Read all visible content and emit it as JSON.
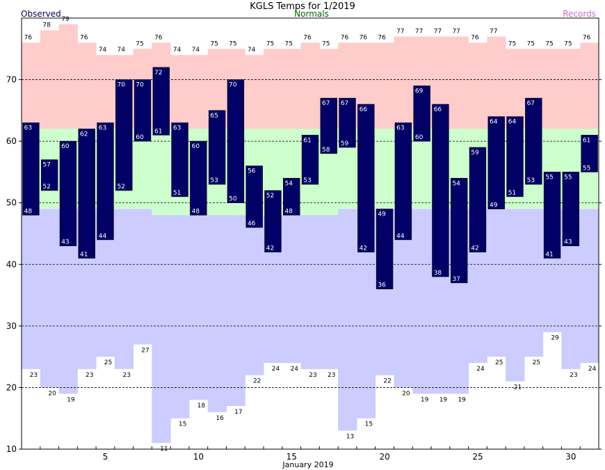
{
  "chart_data": {
    "type": "bar",
    "title": "KGLS Temps for 1/2019",
    "xlabel": "January 2019",
    "ylabel": "",
    "legend": [
      "Observed",
      "Normals",
      "Records"
    ],
    "xlim": [
      0.5,
      31.5
    ],
    "ylim": [
      10,
      80
    ],
    "grid": "dashed horizontal at 20, 30, 40, 50, 60, 70",
    "x_ticks": [
      5,
      10,
      15,
      20,
      25,
      30
    ],
    "y_ticks": [
      10,
      20,
      30,
      40,
      50,
      60,
      70
    ],
    "colors": {
      "observed": "#000066",
      "observed_text": "#ffffff",
      "normal_band": "#ccffcc",
      "record_high_band": "#ffcccc",
      "record_low_band": "#ccccff",
      "legend_observed": "#000066",
      "legend_normals": "#006600",
      "legend_records": "#cc66cc",
      "grid": "#000000"
    },
    "days": [
      1,
      2,
      3,
      4,
      5,
      6,
      7,
      8,
      9,
      10,
      11,
      12,
      13,
      14,
      15,
      16,
      17,
      18,
      19,
      20,
      21,
      22,
      23,
      24,
      25,
      26,
      27,
      28,
      29,
      30,
      31
    ],
    "series": [
      {
        "name": "Observed High",
        "values": [
          63,
          57,
          60,
          62,
          63,
          70,
          70,
          72,
          63,
          60,
          65,
          70,
          56,
          52,
          54,
          61,
          67,
          67,
          66,
          49,
          63,
          69,
          66,
          54,
          59,
          64,
          64,
          67,
          55,
          55,
          61
        ]
      },
      {
        "name": "Observed Low",
        "values": [
          48,
          52,
          43,
          41,
          44,
          52,
          60,
          61,
          51,
          48,
          53,
          50,
          46,
          42,
          48,
          53,
          58,
          59,
          42,
          36,
          44,
          60,
          38,
          37,
          42,
          49,
          51,
          53,
          41,
          43,
          55
        ]
      },
      {
        "name": "Normal High",
        "values": [
          62,
          62,
          62,
          62,
          62,
          62,
          62,
          62,
          62,
          62,
          62,
          62,
          62,
          62,
          62,
          62,
          62,
          62,
          62,
          62,
          62,
          62,
          62,
          62,
          62,
          62,
          62,
          62,
          62,
          62,
          62
        ]
      },
      {
        "name": "Normal Low",
        "values": [
          49,
          49,
          49,
          49,
          49,
          49,
          49,
          48,
          48,
          48,
          48,
          48,
          48,
          48,
          48,
          48,
          48,
          49,
          49,
          49,
          49,
          49,
          49,
          49,
          49,
          49,
          49,
          49,
          49,
          49,
          49
        ]
      },
      {
        "name": "Record High",
        "values": [
          76,
          78,
          79,
          76,
          74,
          74,
          75,
          76,
          74,
          74,
          75,
          75,
          74,
          75,
          75,
          76,
          75,
          76,
          76,
          76,
          77,
          77,
          77,
          77,
          76,
          77,
          75,
          75,
          75,
          75,
          76
        ]
      },
      {
        "name": "Record Low",
        "values": [
          23,
          20,
          19,
          23,
          25,
          23,
          27,
          11,
          15,
          18,
          16,
          17,
          22,
          24,
          24,
          23,
          23,
          13,
          15,
          22,
          20,
          19,
          19,
          19,
          24,
          25,
          21,
          25,
          29,
          23,
          24
        ]
      }
    ]
  }
}
